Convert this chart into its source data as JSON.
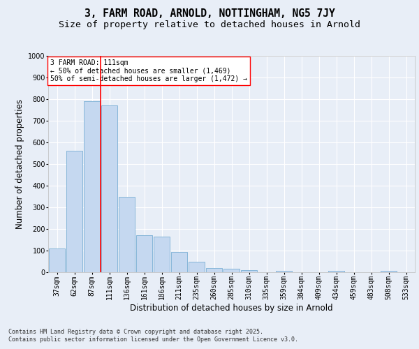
{
  "title_line1": "3, FARM ROAD, ARNOLD, NOTTINGHAM, NG5 7JY",
  "title_line2": "Size of property relative to detached houses in Arnold",
  "xlabel": "Distribution of detached houses by size in Arnold",
  "ylabel": "Number of detached properties",
  "categories": [
    "37sqm",
    "62sqm",
    "87sqm",
    "111sqm",
    "136sqm",
    "161sqm",
    "186sqm",
    "211sqm",
    "235sqm",
    "260sqm",
    "285sqm",
    "310sqm",
    "335sqm",
    "359sqm",
    "384sqm",
    "409sqm",
    "434sqm",
    "459sqm",
    "483sqm",
    "508sqm",
    "533sqm"
  ],
  "values": [
    110,
    560,
    790,
    770,
    350,
    170,
    165,
    95,
    50,
    20,
    15,
    10,
    0,
    5,
    0,
    0,
    5,
    0,
    0,
    5,
    0
  ],
  "bar_color": "#c5d8f0",
  "bar_edge_color": "#7aafd4",
  "red_line_index": 3,
  "ylim": [
    0,
    1000
  ],
  "yticks": [
    0,
    100,
    200,
    300,
    400,
    500,
    600,
    700,
    800,
    900,
    1000
  ],
  "annotation_text_line1": "3 FARM ROAD: 111sqm",
  "annotation_text_line2": "← 50% of detached houses are smaller (1,469)",
  "annotation_text_line3": "50% of semi-detached houses are larger (1,472) →",
  "footer_line1": "Contains HM Land Registry data © Crown copyright and database right 2025.",
  "footer_line2": "Contains public sector information licensed under the Open Government Licence v3.0.",
  "bg_color": "#e8eef7",
  "plot_bg_color": "#e8eef7",
  "grid_color": "#ffffff",
  "title_fontsize": 10.5,
  "subtitle_fontsize": 9.5,
  "axis_label_fontsize": 8.5,
  "tick_fontsize": 7,
  "annotation_fontsize": 7,
  "footer_fontsize": 6
}
